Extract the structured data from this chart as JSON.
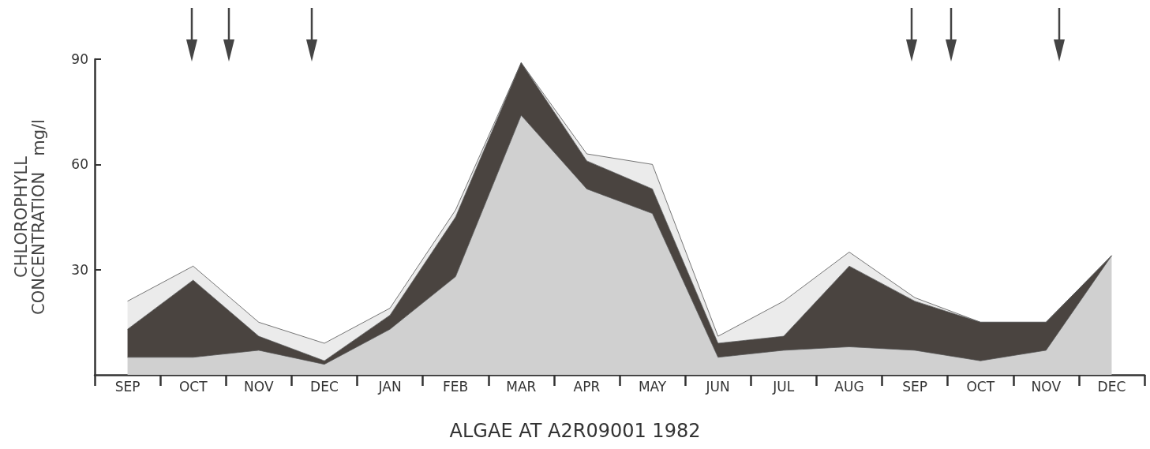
{
  "chart_data": {
    "type": "area",
    "title": "ALGAE AT A2R09001 1982",
    "ylabel": "CHLOROPHYLL\nCONCENTRATION   mg/l",
    "stacked": true,
    "marker": "none",
    "grid": false,
    "categories": [
      "SEP",
      "OCT",
      "NOV",
      "DEC",
      "JAN",
      "FEB",
      "MAR",
      "APR",
      "MAY",
      "JUN",
      "JUL",
      "AUG",
      "SEP",
      "OCT",
      "NOV",
      "DEC"
    ],
    "series": [
      {
        "color": "#d0d0d0",
        "values": [
          5,
          5,
          7,
          3,
          13,
          28,
          74,
          53,
          46,
          5,
          7,
          8,
          7,
          4,
          7,
          34
        ]
      },
      {
        "color": "#4a4440",
        "values": [
          8,
          22,
          4,
          1,
          4,
          17,
          15,
          8,
          7,
          4,
          4,
          23,
          14,
          11,
          8,
          0
        ]
      },
      {
        "color": "#ebebeb",
        "values": [
          8,
          4,
          4,
          5,
          2,
          2,
          0,
          2,
          7,
          2,
          10,
          4,
          1,
          0,
          0,
          0
        ]
      }
    ],
    "ylim": [
      0,
      90
    ],
    "yticks": [
      30,
      60,
      90
    ]
  }
}
